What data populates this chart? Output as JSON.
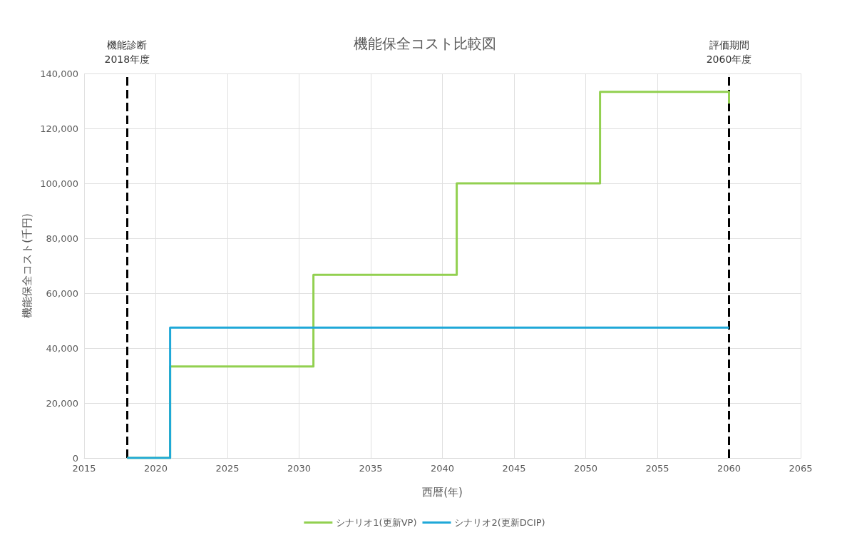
{
  "chart_data": {
    "type": "step",
    "title": "機能保全コスト比較図",
    "xlabel": "西暦(年)",
    "ylabel": "機能保全コスト(千円)",
    "xlim": [
      2015,
      2065
    ],
    "xticks": [
      2015,
      2020,
      2025,
      2030,
      2035,
      2040,
      2045,
      2050,
      2055,
      2060,
      2065
    ],
    "ylim": [
      0,
      140000
    ],
    "yticks": [
      0,
      {
        "value": 20000,
        "label": "20,000"
      },
      {
        "value": 40000,
        "label": "40,000"
      },
      {
        "value": 60000,
        "label": "60,000"
      },
      {
        "value": 80000,
        "label": "80,000"
      },
      {
        "value": 100000,
        "label": "100,000"
      },
      {
        "value": 120000,
        "label": "120,000"
      },
      {
        "value": 140000,
        "label": "140,000"
      }
    ],
    "series": [
      {
        "name": "シナリオ1(更新VP)",
        "color": "#92d050",
        "x": [
          2018,
          2021,
          2031,
          2041,
          2051,
          2060
        ],
        "values": [
          0,
          33300,
          66700,
          100000,
          133300,
          129000
        ]
      },
      {
        "name": "シナリオ2(更新DCIP)",
        "color": "#1fa8d8",
        "x": [
          2018,
          2021,
          2060
        ],
        "values": [
          0,
          47500,
          47500
        ]
      }
    ],
    "ref_lines": [
      {
        "axis": "x",
        "value": 2018,
        "label": "機能診断\n2018年度",
        "color": "#000000",
        "line_style": "dashed"
      },
      {
        "axis": "x",
        "value": 2060,
        "label": "評価期間\n2060年度",
        "color": "#000000",
        "line_style": "dashed"
      }
    ],
    "grid": true,
    "legend": "bottom",
    "marker": "none",
    "line_style": "solid"
  }
}
